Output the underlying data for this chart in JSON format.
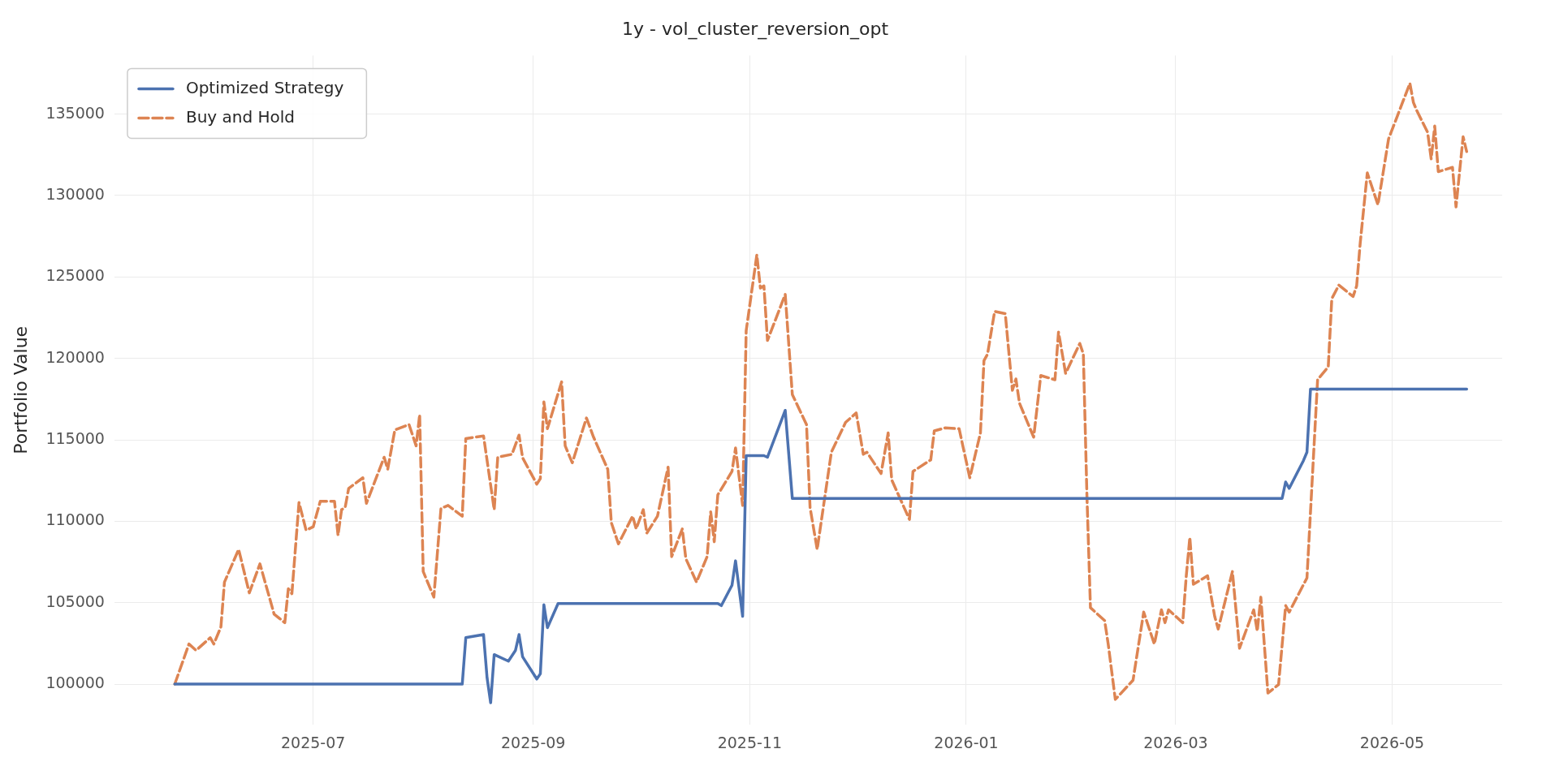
{
  "chart_data": {
    "type": "line",
    "title": "1y - vol_cluster_reversion_opt",
    "ylabel": "Portfolio Value",
    "xlim": [
      "2025-05-06",
      "2026-06-01"
    ],
    "xticks": [
      "2025-07",
      "2025-09",
      "2025-11",
      "2026-01",
      "2026-03",
      "2026-05"
    ],
    "ylim": [
      97500,
      138600
    ],
    "yticks": [
      100000,
      105000,
      110000,
      115000,
      120000,
      125000,
      130000,
      135000
    ],
    "grid": true,
    "legend": "top left",
    "series": [
      {
        "name": "Optimized Strategy",
        "color": "#4c72b0",
        "line_style": "solid",
        "x": [
          "2025-05-23",
          "2025-08-12",
          "2025-08-13",
          "2025-08-18",
          "2025-08-19",
          "2025-08-20",
          "2025-08-21",
          "2025-08-25",
          "2025-08-27",
          "2025-08-28",
          "2025-08-29",
          "2025-09-02",
          "2025-09-03",
          "2025-09-04",
          "2025-09-05",
          "2025-09-08",
          "2025-10-23",
          "2025-10-24",
          "2025-10-27",
          "2025-10-28",
          "2025-10-30",
          "2025-10-31",
          "2025-11-05",
          "2025-11-06",
          "2025-11-11",
          "2025-11-13",
          "2026-03-31",
          "2026-04-01",
          "2026-04-02",
          "2026-04-06",
          "2026-04-07",
          "2026-04-08",
          "2026-05-22"
        ],
        "values": [
          100000,
          100000,
          102850,
          103040,
          100370,
          98850,
          101810,
          101410,
          102070,
          103040,
          101680,
          100310,
          100630,
          104870,
          103460,
          104950,
          104950,
          104820,
          106070,
          107570,
          104160,
          114030,
          114030,
          113930,
          116810,
          111400,
          111400,
          112410,
          112020,
          113720,
          114240,
          118120,
          118120
        ]
      },
      {
        "name": "Buy and Hold",
        "color": "#dd8452",
        "line_style": "dashed",
        "x": [
          "2025-05-23",
          "2025-05-27",
          "2025-05-29",
          "2025-06-02",
          "2025-06-03",
          "2025-06-05",
          "2025-06-06",
          "2025-06-10",
          "2025-06-13",
          "2025-06-16",
          "2025-06-20",
          "2025-06-23",
          "2025-06-24",
          "2025-06-25",
          "2025-06-27",
          "2025-06-29",
          "2025-07-01",
          "2025-07-03",
          "2025-07-07",
          "2025-07-08",
          "2025-07-09",
          "2025-07-10",
          "2025-07-11",
          "2025-07-15",
          "2025-07-16",
          "2025-07-21",
          "2025-07-22",
          "2025-07-24",
          "2025-07-28",
          "2025-07-30",
          "2025-07-31",
          "2025-08-01",
          "2025-08-04",
          "2025-08-06",
          "2025-08-08",
          "2025-08-12",
          "2025-08-13",
          "2025-08-18",
          "2025-08-21",
          "2025-08-22",
          "2025-08-26",
          "2025-08-28",
          "2025-08-29",
          "2025-09-02",
          "2025-09-03",
          "2025-09-04",
          "2025-09-05",
          "2025-09-09",
          "2025-09-10",
          "2025-09-12",
          "2025-09-16",
          "2025-09-18",
          "2025-09-22",
          "2025-09-23",
          "2025-09-25",
          "2025-09-29",
          "2025-09-30",
          "2025-10-02",
          "2025-10-03",
          "2025-10-06",
          "2025-10-09",
          "2025-10-10",
          "2025-10-13",
          "2025-10-14",
          "2025-10-17",
          "2025-10-20",
          "2025-10-21",
          "2025-10-22",
          "2025-10-23",
          "2025-10-27",
          "2025-10-28",
          "2025-10-30",
          "2025-10-31",
          "2025-11-03",
          "2025-11-04",
          "2025-11-05",
          "2025-11-06",
          "2025-11-11",
          "2025-11-13",
          "2025-11-17",
          "2025-11-18",
          "2025-11-20",
          "2025-11-24",
          "2025-11-28",
          "2025-12-01",
          "2025-12-03",
          "2025-12-04",
          "2025-12-08",
          "2025-12-10",
          "2025-12-11",
          "2025-12-16",
          "2025-12-17",
          "2025-12-22",
          "2025-12-23",
          "2025-12-26",
          "2025-12-30",
          "2026-01-02",
          "2026-01-05",
          "2026-01-06",
          "2026-01-07",
          "2026-01-09",
          "2026-01-12",
          "2026-01-14",
          "2026-01-15",
          "2026-01-16",
          "2026-01-20",
          "2026-01-22",
          "2026-01-26",
          "2026-01-27",
          "2026-01-29",
          "2026-02-02",
          "2026-02-03",
          "2026-02-04",
          "2026-02-05",
          "2026-02-09",
          "2026-02-10",
          "2026-02-12",
          "2026-02-17",
          "2026-02-20",
          "2026-02-23",
          "2026-02-25",
          "2026-02-26",
          "2026-02-27",
          "2026-03-03",
          "2026-03-04",
          "2026-03-05",
          "2026-03-06",
          "2026-03-10",
          "2026-03-12",
          "2026-03-13",
          "2026-03-17",
          "2026-03-19",
          "2026-03-23",
          "2026-03-24",
          "2026-03-25",
          "2026-03-27",
          "2026-03-30",
          "2026-04-01",
          "2026-04-02",
          "2026-04-07",
          "2026-04-10",
          "2026-04-13",
          "2026-04-14",
          "2026-04-16",
          "2026-04-20",
          "2026-04-21",
          "2026-04-22",
          "2026-04-24",
          "2026-04-27",
          "2026-04-30",
          "2026-05-06",
          "2026-05-07",
          "2026-05-08",
          "2026-05-11",
          "2026-05-12",
          "2026-05-13",
          "2026-05-14",
          "2026-05-18",
          "2026-05-19",
          "2026-05-21",
          "2026-05-22"
        ],
        "values": [
          100000,
          102460,
          102070,
          102850,
          102460,
          103510,
          106260,
          108270,
          105600,
          107380,
          104290,
          103770,
          105860,
          105550,
          111150,
          109450,
          109660,
          111230,
          111230,
          109140,
          110710,
          110840,
          112020,
          112670,
          111100,
          113930,
          113190,
          115600,
          115940,
          114630,
          116550,
          106910,
          105340,
          110790,
          110970,
          110310,
          115080,
          115240,
          110710,
          113930,
          114110,
          115290,
          113900,
          112280,
          112620,
          117330,
          115680,
          118560,
          114630,
          113590,
          116340,
          115160,
          113190,
          109920,
          108610,
          110310,
          109530,
          110710,
          109270,
          110310,
          113320,
          107830,
          109530,
          107700,
          106260,
          107830,
          110580,
          108740,
          111620,
          113060,
          114500,
          110970,
          121700,
          126360,
          124320,
          124450,
          121100,
          123930,
          117780,
          115940,
          110840,
          108270,
          114240,
          116070,
          116650,
          114110,
          114240,
          112930,
          115420,
          112540,
          110110,
          113060,
          113770,
          115550,
          115730,
          115680,
          112670,
          115420,
          119870,
          120260,
          122880,
          122750,
          118040,
          118740,
          117250,
          115160,
          118950,
          118690,
          121620,
          119080,
          120920,
          120260,
          111620,
          104690,
          103900,
          102460,
          99060,
          100240,
          104420,
          102460,
          104560,
          103770,
          104560,
          103770,
          106650,
          109010,
          106130,
          106650,
          104160,
          103380,
          106910,
          102200,
          104560,
          103250,
          105340,
          99450,
          99970,
          104820,
          104420,
          106520,
          118690,
          119480,
          123670,
          124500,
          123800,
          124450,
          127070,
          131390,
          129430,
          133480,
          136890,
          135710,
          135190,
          133880,
          132250,
          134270,
          131470,
          131730,
          129300,
          133610,
          132700
        ]
      }
    ]
  }
}
